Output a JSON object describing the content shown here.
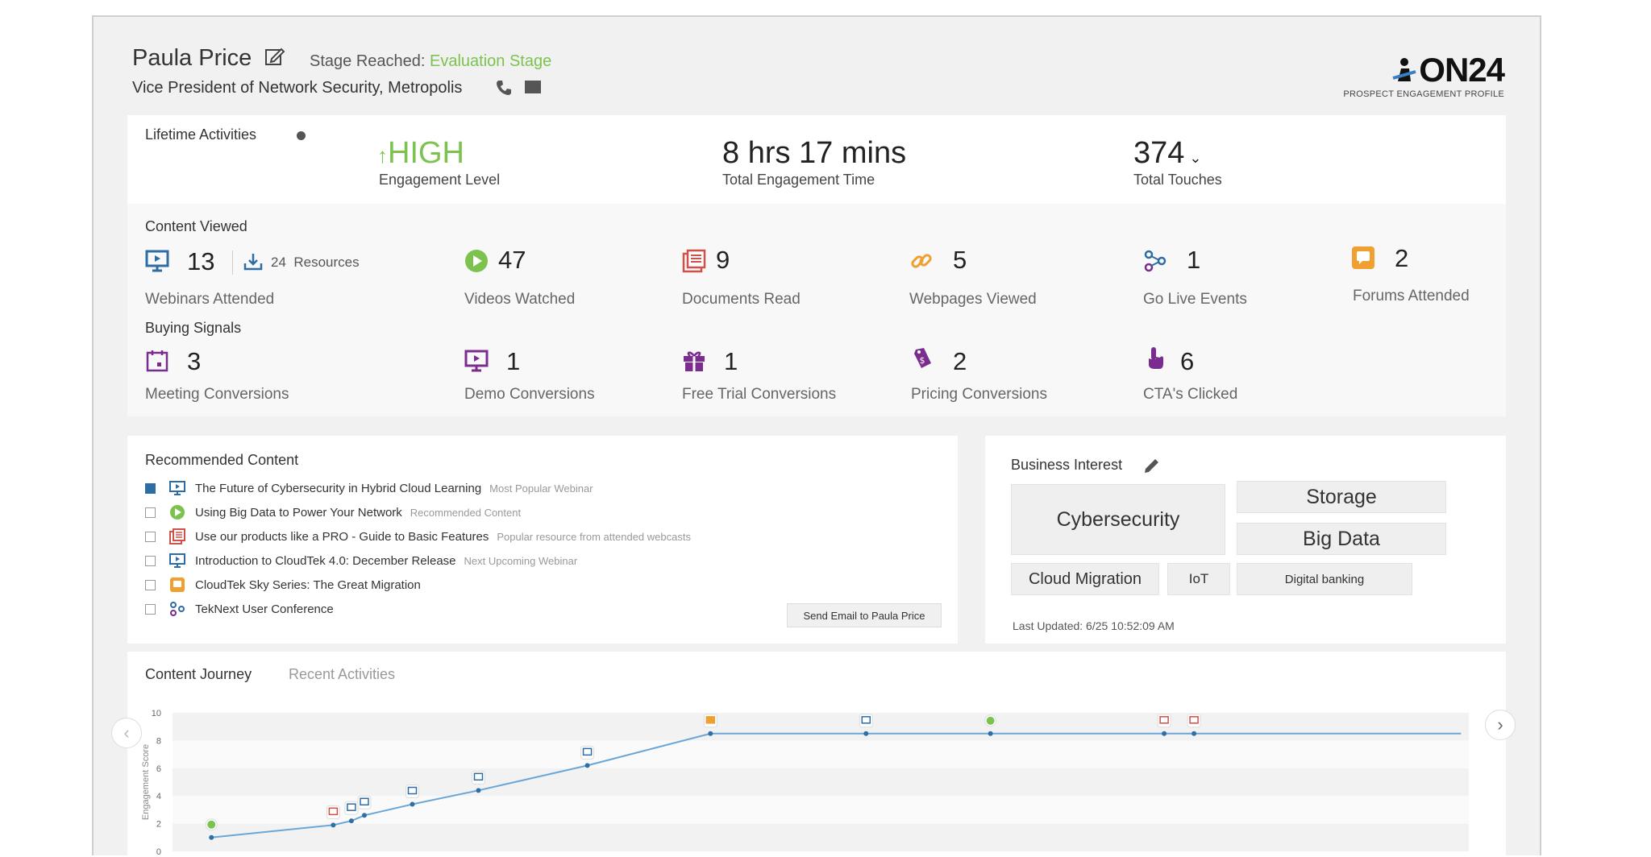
{
  "profile": {
    "name": "Paula Price",
    "stage_label": "Stage Reached:",
    "stage_value": "Evaluation Stage",
    "title": "Vice President of Network Security, Metropolis"
  },
  "logo": {
    "brand": "ON24",
    "subtitle": "PROSPECT ENGAGEMENT PROFILE"
  },
  "lifetime": {
    "title": "Lifetime Activities",
    "engagement_value": "HIGH",
    "engagement_label": "Engagement Level",
    "time_value": "8 hrs 17 mins",
    "time_label": "Total Engagement Time",
    "touches_value": "374",
    "touches_label": "Total Touches"
  },
  "content_viewed": {
    "title": "Content Viewed",
    "items": [
      {
        "value": "13",
        "label": "Webinars Attended",
        "extra_value": "24",
        "extra_label": "Resources",
        "icon": "webinar-icon"
      },
      {
        "value": "47",
        "label": "Videos Watched",
        "icon": "play-icon"
      },
      {
        "value": "9",
        "label": "Documents Read",
        "icon": "document-icon"
      },
      {
        "value": "5",
        "label": "Webpages Viewed",
        "icon": "link-icon"
      },
      {
        "value": "1",
        "label": "Go Live Events",
        "icon": "flow-icon"
      },
      {
        "value": "2",
        "label": "Forums Attended",
        "icon": "forum-icon"
      }
    ]
  },
  "buying_signals": {
    "title": "Buying Signals",
    "items": [
      {
        "value": "3",
        "label": "Meeting Conversions",
        "icon": "calendar-icon"
      },
      {
        "value": "1",
        "label": "Demo Conversions",
        "icon": "monitor-icon"
      },
      {
        "value": "1",
        "label": "Free Trial Conversions",
        "icon": "gift-icon"
      },
      {
        "value": "2",
        "label": "Pricing Conversions",
        "icon": "price-tag-icon"
      },
      {
        "value": "6",
        "label": "CTA's Clicked",
        "icon": "pointer-icon"
      }
    ]
  },
  "recommended": {
    "title": "Recommended Content",
    "items": [
      {
        "title": "The Future of Cybersecurity in Hybrid Cloud Learning",
        "sub": "Most Popular Webinar",
        "checked": true,
        "icon": "webinar-icon"
      },
      {
        "title": "Using Big Data to Power Your Network",
        "sub": "Recommended Content",
        "checked": false,
        "icon": "play-icon"
      },
      {
        "title": "Use our products like a PRO - Guide to Basic Features",
        "sub": "Popular resource from attended webcasts",
        "checked": false,
        "icon": "document-icon"
      },
      {
        "title": "Introduction to CloudTek 4.0: December Release",
        "sub": "Next Upcoming Webinar",
        "checked": false,
        "icon": "webinar-icon"
      },
      {
        "title": "CloudTek Sky Series: The Great Migration",
        "sub": "",
        "checked": false,
        "icon": "forum-icon"
      },
      {
        "title": "TekNext User Conference",
        "sub": "",
        "checked": false,
        "icon": "flow-icon"
      }
    ],
    "send_button": "Send Email to Paula Price"
  },
  "business_interest": {
    "title": "Business Interest",
    "tags": [
      "Cybersecurity",
      "Storage",
      "Big Data",
      "Cloud Migration",
      "IoT",
      "Digital banking"
    ],
    "last_updated": "Last Updated: 6/25 10:52:09 AM"
  },
  "journey": {
    "tab_active": "Content Journey",
    "tab_inactive": "Recent Activities"
  },
  "chart_data": {
    "type": "line",
    "ylabel": "Engagement Score",
    "ylim": [
      0,
      10
    ],
    "yticks": [
      "0",
      "2",
      "4",
      "6",
      "8",
      "10"
    ],
    "series": [
      {
        "values": [
          1.0,
          1.9,
          2.2,
          2.6,
          3.4,
          4.4,
          6.2,
          8.5,
          8.5,
          8.5,
          8.5,
          8.5,
          8.5
        ]
      }
    ],
    "point_icons": [
      "play",
      "document",
      "webinar",
      "webinar",
      "webinar",
      "flow",
      "webinar",
      "forum",
      "webinar",
      "play",
      "document",
      "document",
      ""
    ],
    "colors": {
      "line": "#6aa6d6",
      "point": "#2f6fa6"
    }
  },
  "colors": {
    "green": "#7cc24e",
    "blue": "#2e6da4",
    "red": "#d0504a",
    "orange": "#f0a030",
    "purple": "#7b2c8f"
  }
}
